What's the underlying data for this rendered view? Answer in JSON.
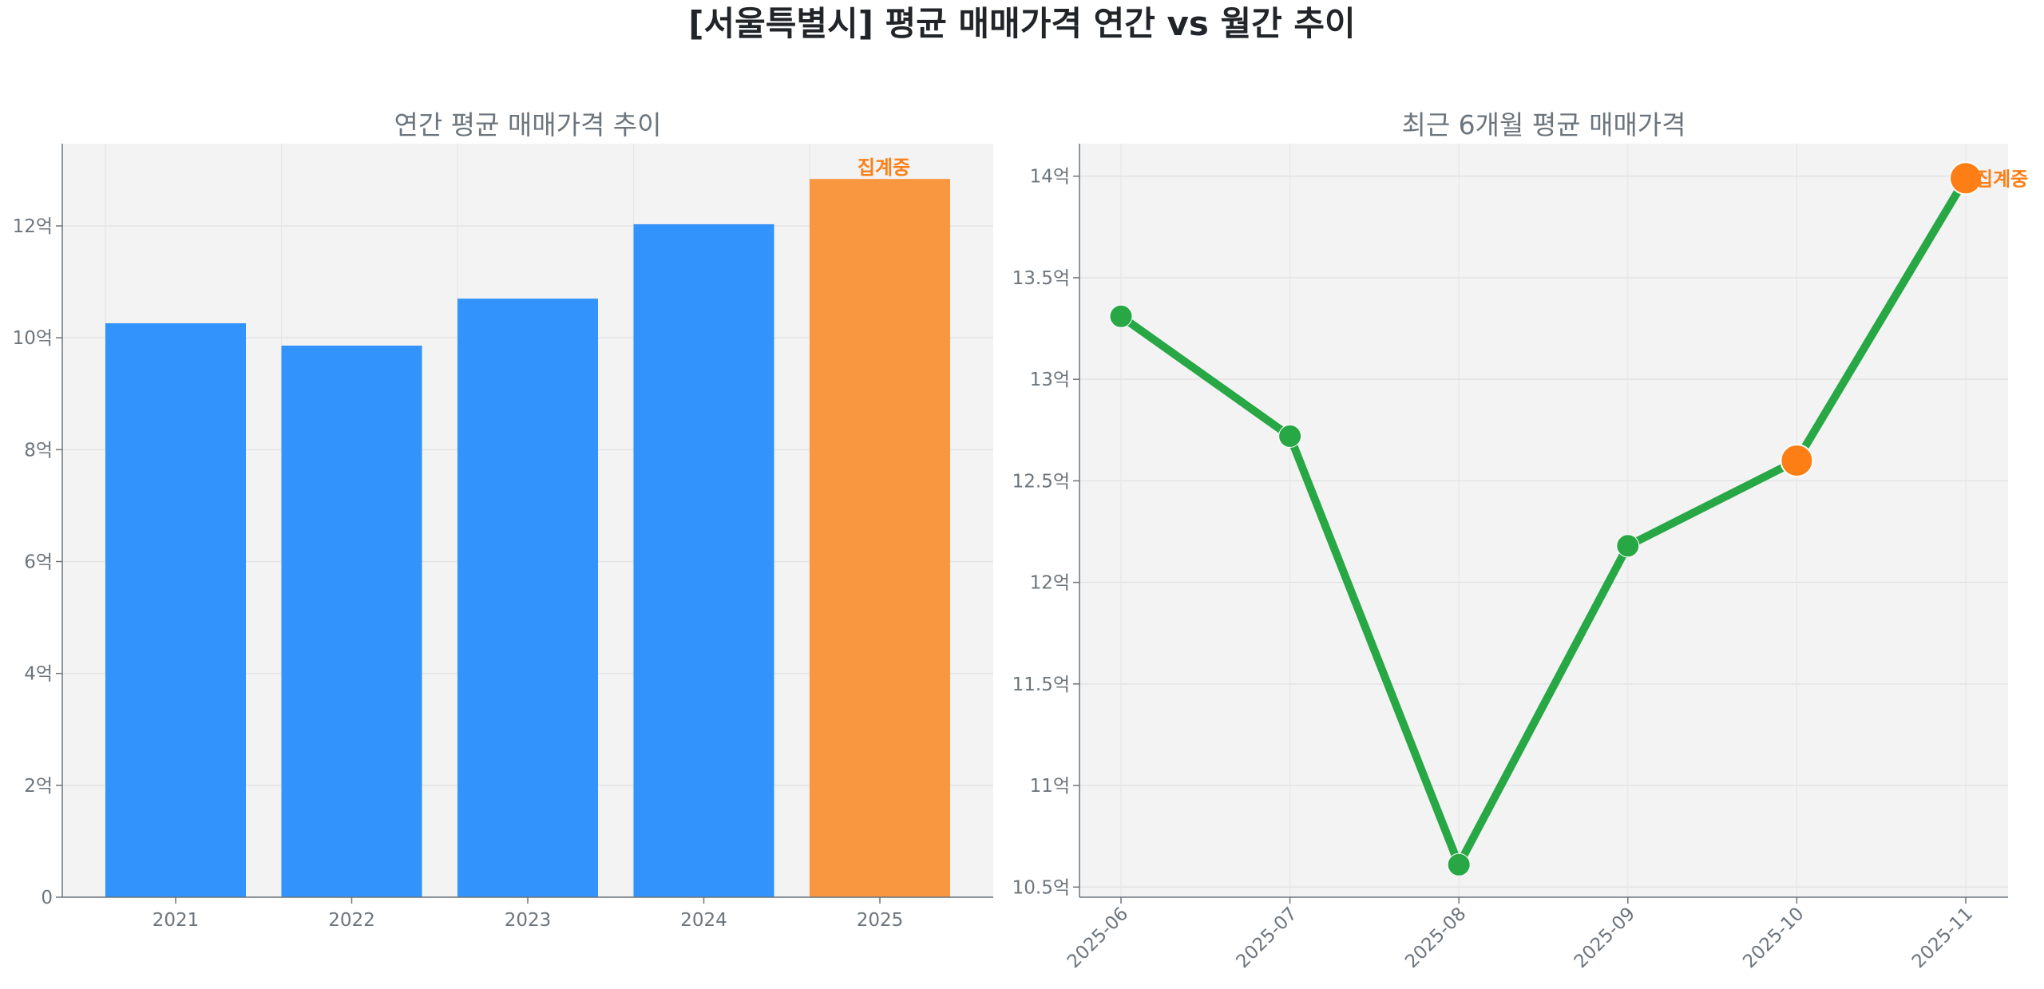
{
  "title": "[서울특별시] 평균 매매가격 연간 vs 월간 추이",
  "colors": {
    "bar": "#3193FB",
    "bar_highlight": "#F99740",
    "line": "#28A745",
    "marker_highlight": "#FD7E14",
    "plot_bg": "#F3F3F3",
    "axis_text": "#6C757D",
    "title_text": "#212529",
    "annotation": "#FD7E14"
  },
  "chart_data": [
    {
      "type": "bar",
      "title": "연간 평균 매매가격 추이",
      "categories": [
        "2021",
        "2022",
        "2023",
        "2024",
        "2025"
      ],
      "values": [
        10.26,
        9.86,
        10.7,
        12.03,
        12.84
      ],
      "unit": "억",
      "highlight_index": 4,
      "annotation": "집계중",
      "ylim": [
        0,
        13.47
      ],
      "yticks": [
        0,
        2,
        4,
        6,
        8,
        10,
        12
      ],
      "ytick_labels": [
        "0",
        "2억",
        "4억",
        "6억",
        "8억",
        "10억",
        "12억"
      ],
      "grid": true
    },
    {
      "type": "line",
      "title": "최근 6개월 평균 매매가격",
      "x": [
        "2025-06",
        "2025-07",
        "2025-08",
        "2025-09",
        "2025-10",
        "2025-11"
      ],
      "values": [
        13.31,
        12.72,
        10.61,
        12.18,
        12.6,
        13.99
      ],
      "unit": "억",
      "highlight_indices": [
        4,
        5
      ],
      "annotation": "집계중",
      "ylim": [
        10.45,
        14.16
      ],
      "yticks": [
        10.5,
        11,
        11.5,
        12,
        12.5,
        13,
        13.5,
        14
      ],
      "ytick_labels": [
        "10.5억",
        "11억",
        "11.5억",
        "12억",
        "12.5억",
        "13억",
        "13.5억",
        "14억"
      ],
      "grid": true
    }
  ]
}
